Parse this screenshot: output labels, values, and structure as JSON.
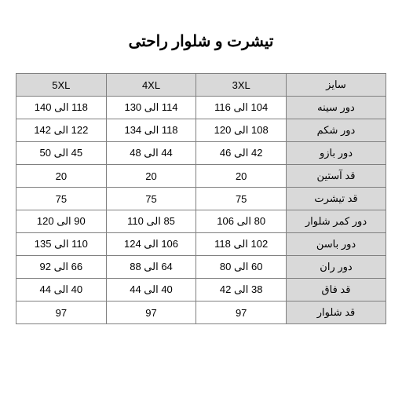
{
  "title": "تیشرت و شلوار راحتی",
  "table": {
    "columns": [
      "5XL",
      "4XL",
      "3XL",
      "سایز"
    ],
    "rows": [
      {
        "label": "دور سینه",
        "values": [
          "118 الی 140",
          "114 الی 130",
          "104 الی 116"
        ]
      },
      {
        "label": "دور شکم",
        "values": [
          "122 الی 142",
          "118 الی 134",
          "108 الی 120"
        ]
      },
      {
        "label": "دور بازو",
        "values": [
          "45 الی 50",
          "44 الی 48",
          "42 الی 46"
        ]
      },
      {
        "label": "قد آستین",
        "values": [
          "20",
          "20",
          "20"
        ]
      },
      {
        "label": "قد تیشرت",
        "values": [
          "75",
          "75",
          "75"
        ]
      },
      {
        "label": "دور کمر شلوار",
        "values": [
          "90 الی 120",
          "85 الی 110",
          "80 الی 106"
        ]
      },
      {
        "label": "دور باسن",
        "values": [
          "110 الی 135",
          "106 الی 124",
          "102 الی 118"
        ]
      },
      {
        "label": "دور ران",
        "values": [
          "66 الی 92",
          "64 الی 88",
          "60 الی 80"
        ]
      },
      {
        "label": "قد فاق",
        "values": [
          "40 الی 44",
          "40 الی 44",
          "38 الی 42"
        ]
      },
      {
        "label": "قد شلوار",
        "values": [
          "97",
          "97",
          "97"
        ]
      }
    ],
    "header_bg": "#d9d9d9",
    "cell_bg": "#ffffff",
    "border_color": "#808080",
    "font_size": 13
  }
}
